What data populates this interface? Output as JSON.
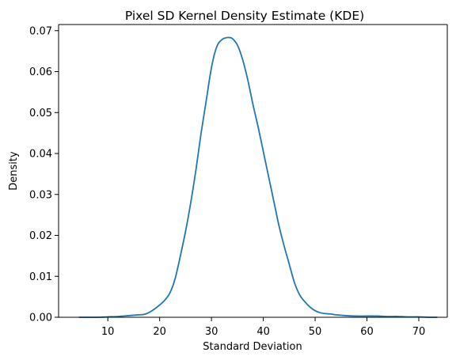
{
  "chart_data": {
    "type": "line",
    "title": "Pixel SD Kernel Density Estimate (KDE)",
    "xlabel": "Standard Deviation",
    "ylabel": "Density",
    "xlim": [
      0.5,
      75.5
    ],
    "ylim": [
      0,
      0.0715
    ],
    "x_ticks": [
      10,
      20,
      30,
      40,
      50,
      60,
      70
    ],
    "x_tick_labels": [
      "10",
      "20",
      "30",
      "40",
      "50",
      "60",
      "70"
    ],
    "y_ticks": [
      0.0,
      0.01,
      0.02,
      0.03,
      0.04,
      0.05,
      0.06,
      0.07
    ],
    "y_tick_labels": [
      "0.00",
      "0.01",
      "0.02",
      "0.03",
      "0.04",
      "0.05",
      "0.06",
      "0.07"
    ],
    "grid": false,
    "legend": null,
    "colors": {
      "line": "#1f77b4"
    },
    "series": [
      {
        "x": [
          4.5,
          8,
          10,
          12,
          14,
          16,
          17,
          18,
          19,
          20,
          21,
          22,
          23,
          24,
          25,
          26,
          27,
          28,
          29,
          30,
          31,
          32,
          33,
          33.5,
          34,
          35,
          36,
          37,
          38,
          39,
          40,
          41,
          42,
          43,
          44,
          45,
          46,
          47,
          48,
          49,
          50,
          51,
          52,
          53,
          54,
          55,
          56,
          58,
          60,
          62,
          64,
          66,
          68,
          70,
          72,
          73.5
        ],
        "y": [
          0.0,
          0.0,
          0.0001,
          0.0002,
          0.0004,
          0.0006,
          0.0007,
          0.0012,
          0.002,
          0.003,
          0.0042,
          0.006,
          0.0095,
          0.015,
          0.021,
          0.028,
          0.036,
          0.045,
          0.053,
          0.061,
          0.066,
          0.0678,
          0.0683,
          0.0683,
          0.0681,
          0.0665,
          0.063,
          0.058,
          0.052,
          0.0465,
          0.0405,
          0.0345,
          0.0285,
          0.0225,
          0.0175,
          0.013,
          0.0085,
          0.0055,
          0.0038,
          0.0025,
          0.0016,
          0.0011,
          0.0009,
          0.0008,
          0.0006,
          0.0005,
          0.0004,
          0.0003,
          0.0003,
          0.0003,
          0.0002,
          0.0002,
          0.0001,
          0.0001,
          0.0,
          0.0
        ]
      }
    ]
  }
}
